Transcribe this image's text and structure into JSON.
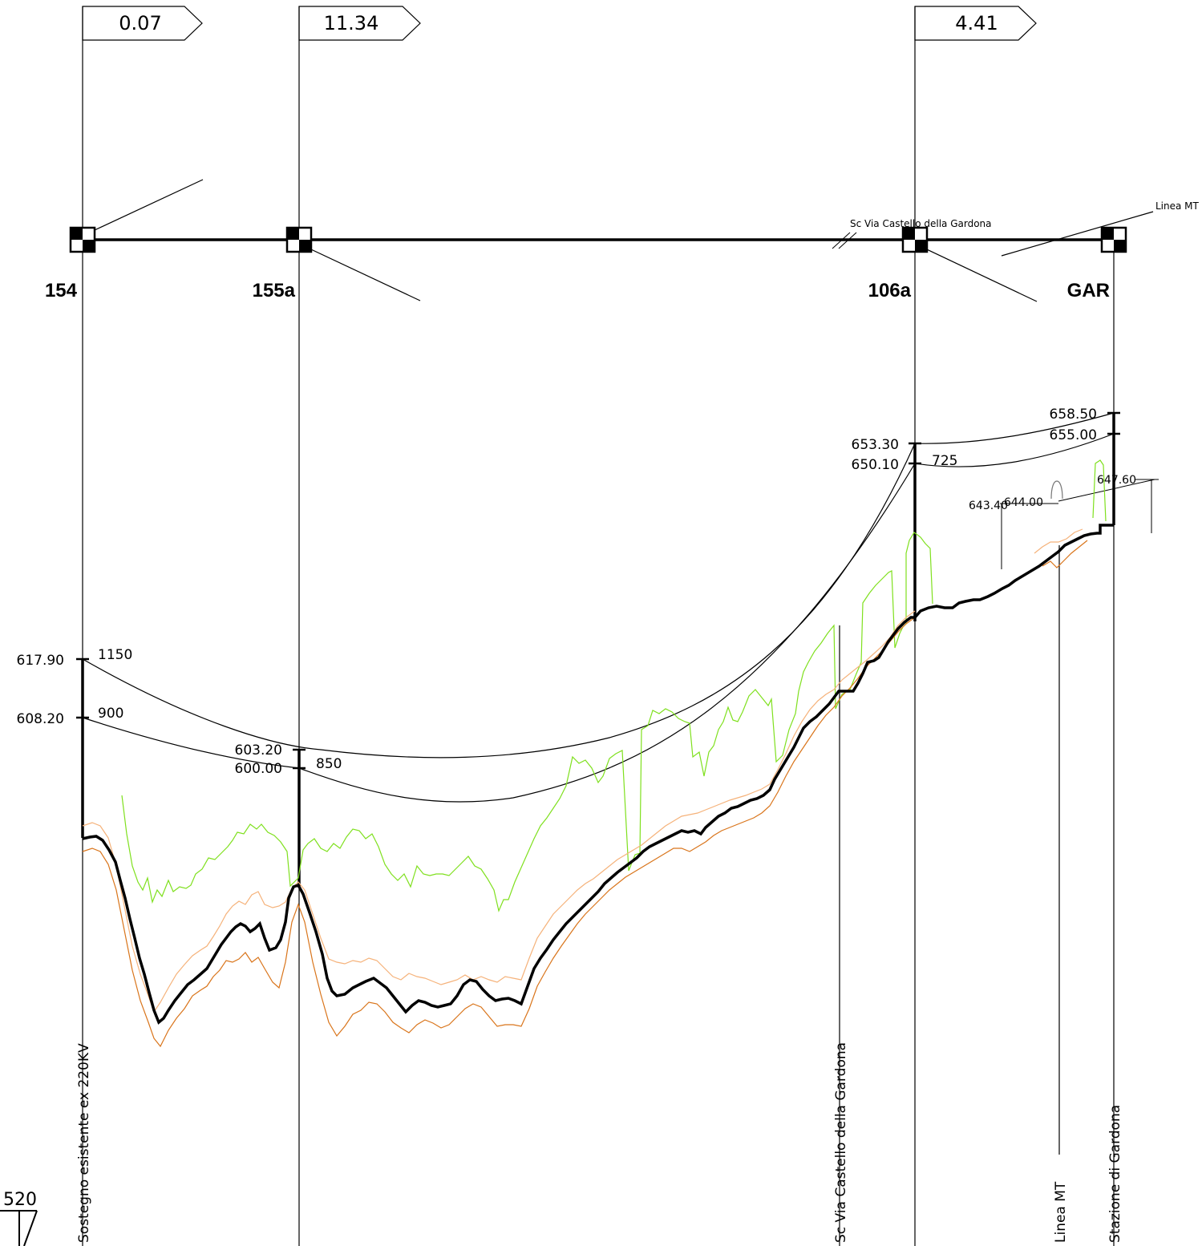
{
  "towers": [
    {
      "name": "154",
      "span_label": "0.07",
      "top_elev": "617.90",
      "bottom_elev": "608.20",
      "top_tension": "1150",
      "bottom_tension": "900"
    },
    {
      "name": "155a",
      "span_label": "11.34",
      "top_elev": "603.20",
      "bottom_elev": "600.00",
      "tension": "850"
    },
    {
      "name": "106a",
      "span_label": "4.41",
      "top_elev": "653.30",
      "bottom_elev": "650.10",
      "tension": "725"
    },
    {
      "name": "GAR",
      "top_elev": "658.50",
      "bottom_elev": "655.00"
    }
  ],
  "crossings": {
    "mt_top": "Linea MT",
    "road_top": "Sc Via Castello della Gardona",
    "elev_643": "643.40",
    "elev_644": "644.00",
    "elev_647": "647.60"
  },
  "vertical_labels": {
    "sostegno": "Sostegno esistente ex 220KV",
    "road": "Sc Via Castello della Gardona",
    "mt": "Linea MT",
    "stazione": "Stazione di Gardona"
  },
  "datum": "520",
  "colors": {
    "ground": "#000000",
    "vegetation": "#7fe01e",
    "offset_light": "#f5b27a",
    "offset_dark": "#d9741a",
    "lines": "#000000"
  }
}
